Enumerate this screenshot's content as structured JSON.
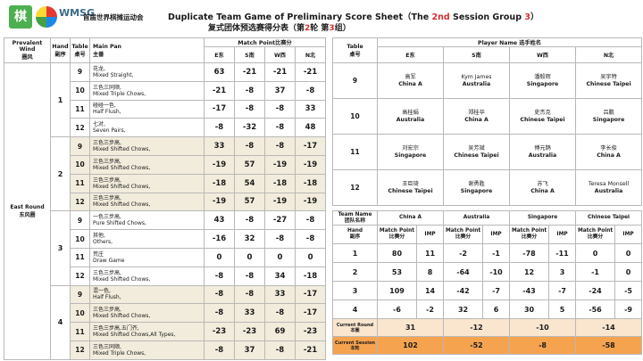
{
  "header": {
    "logo_text": "棋",
    "brand": "WMSG",
    "org": "首届世界棋摊运动会",
    "title_prefix": "Duplicate Team Game of Preliminary Score Sheet（The ",
    "title_session": "2nd",
    "title_mid": " Session Group ",
    "title_group": "3",
    "title_suffix": "）",
    "subtitle_prefix": "复式团体预选赛得分表（第",
    "subtitle_session": "2",
    "subtitle_mid": "轮 第",
    "subtitle_group": "3",
    "subtitle_suffix": "组）"
  },
  "left": {
    "h_wind": "Prevalent Wind\n圈风",
    "h_hand": "Hand\n副序",
    "h_table": "Table\n桌号",
    "h_pan": "Main Pan\n主番",
    "h_mp": "Match Point比赛分",
    "h_e": "E东",
    "h_s": "S南",
    "h_w": "W西",
    "h_n": "N北",
    "wind_label": "East Round\n东风圈",
    "hands": [
      "1",
      "2",
      "3",
      "4"
    ],
    "rows": [
      {
        "t": "9",
        "pan_cn": "花龙,",
        "pan_en": "Mixed Straight,",
        "e": "63",
        "s": "-21",
        "w": "-21",
        "n": "-21"
      },
      {
        "t": "10",
        "pan_cn": "三色三同顺,",
        "pan_en": "Mixed Triple Chows,",
        "e": "-21",
        "s": "-8",
        "w": "37",
        "n": "-8"
      },
      {
        "t": "11",
        "pan_cn": "碰碰一色,",
        "pan_en": "Half Flush,",
        "e": "-17",
        "s": "-8",
        "w": "-8",
        "n": "33"
      },
      {
        "t": "12",
        "pan_cn": "七对,",
        "pan_en": "Seven Pairs,",
        "e": "-8",
        "s": "-32",
        "w": "-8",
        "n": "48"
      },
      {
        "t": "9",
        "pan_cn": "三色三步高,",
        "pan_en": "Mixed Shifted Chows,",
        "e": "33",
        "s": "-8",
        "w": "-8",
        "n": "-17"
      },
      {
        "t": "10",
        "pan_cn": "三色三步高,",
        "pan_en": "Mixed Shifted Chows,",
        "e": "-19",
        "s": "57",
        "w": "-19",
        "n": "-19"
      },
      {
        "t": "11",
        "pan_cn": "三色三步高,",
        "pan_en": "Mixed Shifted Chows,",
        "e": "-18",
        "s": "54",
        "w": "-18",
        "n": "-18"
      },
      {
        "t": "12",
        "pan_cn": "三色三步高,",
        "pan_en": "Mixed Shifted Chows,",
        "e": "-19",
        "s": "57",
        "w": "-19",
        "n": "-19"
      },
      {
        "t": "9",
        "pan_cn": "一色三步高,",
        "pan_en": "Pure Shifted Chows,",
        "e": "43",
        "s": "-8",
        "w": "-27",
        "n": "-8"
      },
      {
        "t": "10",
        "pan_cn": "其他,",
        "pan_en": "Others,",
        "e": "-16",
        "s": "32",
        "w": "-8",
        "n": "-8"
      },
      {
        "t": "11",
        "pan_cn": "荒庄",
        "pan_en": "Draw Game",
        "e": "0",
        "s": "0",
        "w": "0",
        "n": "0"
      },
      {
        "t": "12",
        "pan_cn": "三色三步高,",
        "pan_en": "Mixed Shifted Chows,",
        "e": "-8",
        "s": "-8",
        "w": "34",
        "n": "-18"
      },
      {
        "t": "9",
        "pan_cn": "混一色,",
        "pan_en": "Half Flush,",
        "e": "-8",
        "s": "-8",
        "w": "33",
        "n": "-17"
      },
      {
        "t": "10",
        "pan_cn": "三色三步高,",
        "pan_en": "Mixed Shifted Chows,",
        "e": "-8",
        "s": "33",
        "w": "-8",
        "n": "-17"
      },
      {
        "t": "11",
        "pan_cn": "三色三步高,五门齐,",
        "pan_en": "Mixed Shifted Chows,All Types,",
        "e": "-23",
        "s": "-23",
        "w": "69",
        "n": "-23"
      },
      {
        "t": "12",
        "pan_cn": "三色三同顺,",
        "pan_en": "Mixed Triple Chows,",
        "e": "-8",
        "s": "37",
        "w": "-8",
        "n": "-21"
      }
    ]
  },
  "players": {
    "h_table": "Table\n桌号",
    "h_player": "Player Name 选手姓名",
    "h_e": "E东",
    "h_s": "S南",
    "h_w": "W西",
    "h_n": "N北",
    "tables": [
      {
        "t": "9",
        "cells": [
          {
            "cn": "高军",
            "ct": "China A"
          },
          {
            "cn": "Kym James",
            "ct": "Australia"
          },
          {
            "cn": "潘毅辉",
            "ct": "Singapore"
          },
          {
            "cn": "吴宇特",
            "ct": "Chinese Taipei"
          }
        ]
      },
      {
        "t": "10",
        "cells": [
          {
            "cn": "高桂娟",
            "ct": "Australia"
          },
          {
            "cn": "郑桂华",
            "ct": "China A"
          },
          {
            "cn": "史杰克",
            "ct": "Chinese Taipei"
          },
          {
            "cn": "吕鹏",
            "ct": "Singapore"
          }
        ]
      },
      {
        "t": "11",
        "cells": [
          {
            "cn": "刘宏宗",
            "ct": "Singapore"
          },
          {
            "cn": "吴芳斌",
            "ct": "Chinese Taipei"
          },
          {
            "cn": "傅元鹊",
            "ct": "Australia"
          },
          {
            "cn": "李长俊",
            "ct": "China A"
          }
        ]
      },
      {
        "t": "12",
        "cells": [
          {
            "cn": "王巨琦",
            "ct": "Chinese Taipei"
          },
          {
            "cn": "谢勇胜",
            "ct": "Singapore"
          },
          {
            "cn": "苏飞",
            "ct": "China A"
          },
          {
            "cn": "Teresa Monsell",
            "ct": "Australia"
          }
        ]
      }
    ]
  },
  "summary": {
    "h_team": "Team Name\n团队名称",
    "teams": [
      "China A",
      "Australia",
      "Singapore",
      "Chinese Taipei"
    ],
    "h_hand": "Hand\n副序",
    "h_mp": "Match Point\n比赛分",
    "h_imp": "IMP",
    "rows": [
      {
        "hand": "1",
        "v": [
          "80",
          "11",
          "-2",
          "-1",
          "-78",
          "-11",
          "0",
          "0"
        ]
      },
      {
        "hand": "2",
        "v": [
          "53",
          "8",
          "-64",
          "-10",
          "12",
          "3",
          "-1",
          "0"
        ]
      },
      {
        "hand": "3",
        "v": [
          "109",
          "14",
          "-42",
          "-7",
          "-43",
          "-7",
          "-24",
          "-5"
        ]
      },
      {
        "hand": "4",
        "v": [
          "-6",
          "-2",
          "32",
          "6",
          "30",
          "5",
          "-56",
          "-9"
        ]
      }
    ],
    "current_round_label": "Current Round\n本圈",
    "current_round": [
      "31",
      "-12",
      "-10",
      "-14"
    ],
    "current_session_label": "Current Session\n本轮",
    "current_session": [
      "102",
      "-52",
      "-8",
      "-58"
    ]
  }
}
